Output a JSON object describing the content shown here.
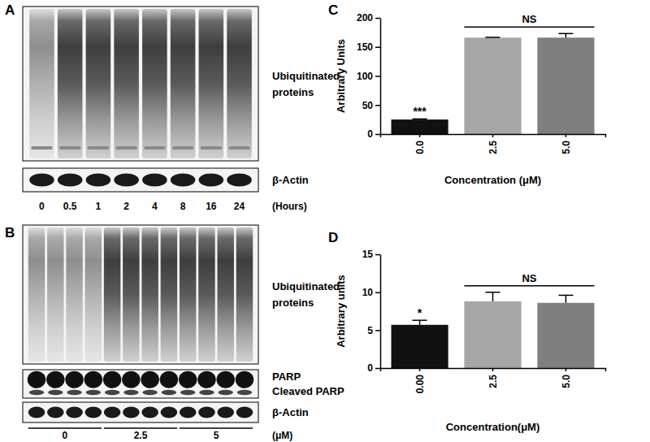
{
  "chart_data": [
    {
      "type": "bar",
      "annotations": [
        "C",
        "***",
        "NS"
      ],
      "x_label": "Concentration (μM)",
      "y_label": "Arbitrary Units",
      "categories": [
        "0.0",
        "2.5",
        "5.0"
      ],
      "values": [
        25,
        166,
        166
      ],
      "errors": [
        1,
        0.5,
        7
      ],
      "colors": [
        "#111111",
        "#a6a6a6",
        "#7f7f7f"
      ],
      "ylim": [
        0,
        200
      ],
      "yticks": [
        0,
        50,
        100,
        150,
        200
      ],
      "grid": false
    },
    {
      "type": "bar",
      "annotations": [
        "D",
        "*",
        "NS"
      ],
      "x_label": "Concentration(μM)",
      "y_label": "Arbitrary units",
      "categories": [
        "0.00",
        "2.5",
        "5.0"
      ],
      "values": [
        5.7,
        8.8,
        8.6
      ],
      "errors": [
        0.6,
        1.2,
        1.0
      ],
      "colors": [
        "#111111",
        "#a6a6a6",
        "#7f7f7f"
      ],
      "ylim": [
        0,
        15
      ],
      "yticks": [
        0,
        5,
        10,
        15
      ],
      "grid": false
    }
  ],
  "blots": [
    {
      "panel": "A",
      "rows": [
        {
          "label": [
            "Ubiquitinated",
            "proteins"
          ]
        },
        {
          "label": [
            "β-Actin"
          ]
        }
      ],
      "lanes": [
        "0",
        "0.5",
        "1",
        "2",
        "4",
        "8",
        "16",
        "24"
      ],
      "unit": "(Hours)"
    },
    {
      "panel": "B",
      "rows": [
        {
          "label": [
            "Ubiquitinated",
            "proteins"
          ]
        },
        {
          "label": [
            "PARP",
            "Cleaved PARP"
          ]
        },
        {
          "label": [
            "β-Actin"
          ]
        }
      ],
      "groups": [
        "0",
        "2.5",
        "5"
      ],
      "unit": "(μM)"
    }
  ]
}
